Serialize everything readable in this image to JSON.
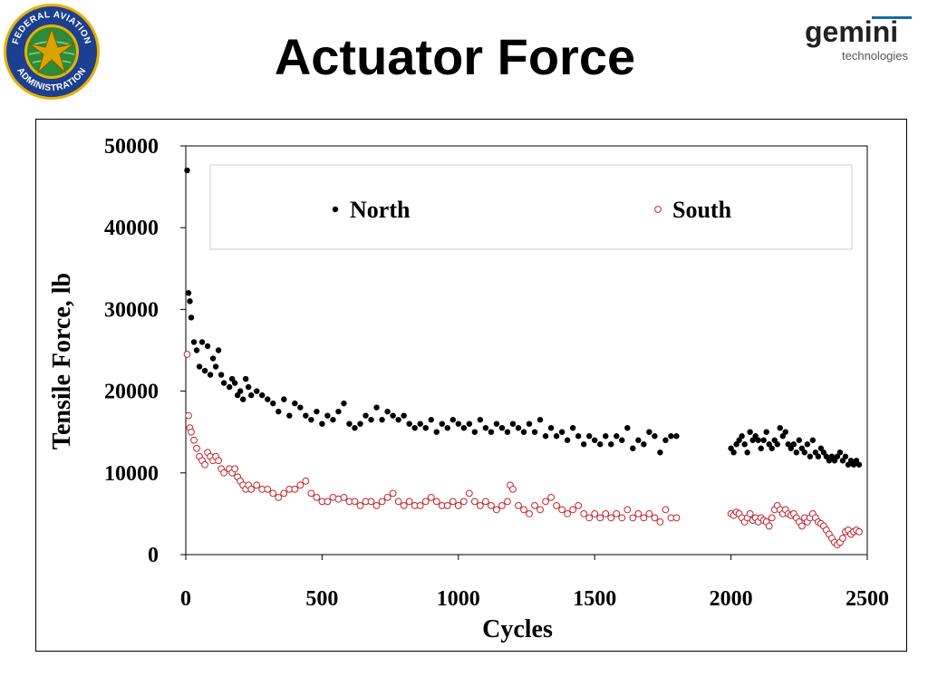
{
  "slide": {
    "title": "Actuator Force",
    "seal": {
      "top_text": "FEDERAL AVIATION",
      "bottom_text": "ADMINISTRATION"
    },
    "brand": {
      "name": "gemini",
      "subtitle": "technologies",
      "accent": "#1a6aa8"
    }
  },
  "chart_data": {
    "type": "scatter",
    "xlabel": "Cycles",
    "ylabel": "Tensile Force, lb",
    "xlim": [
      0,
      2500
    ],
    "ylim": [
      0,
      50000
    ],
    "xticks": [
      "0",
      "500",
      "1000",
      "1500",
      "2000",
      "2500"
    ],
    "yticks": [
      "0",
      "10000",
      "20000",
      "30000",
      "40000",
      "50000"
    ],
    "grid": false,
    "legend": {
      "placement": "top-inside",
      "boxed": true
    },
    "series": [
      {
        "name": "North",
        "color": "#000000",
        "marker": "filled-dot",
        "points": [
          [
            5,
            47000
          ],
          [
            10,
            32000
          ],
          [
            15,
            31000
          ],
          [
            20,
            29000
          ],
          [
            30,
            26000
          ],
          [
            40,
            25000
          ],
          [
            50,
            23000
          ],
          [
            60,
            26000
          ],
          [
            70,
            22500
          ],
          [
            80,
            25500
          ],
          [
            90,
            22000
          ],
          [
            100,
            24000
          ],
          [
            110,
            23000
          ],
          [
            120,
            25000
          ],
          [
            130,
            22000
          ],
          [
            140,
            21000
          ],
          [
            160,
            20500
          ],
          [
            170,
            21500
          ],
          [
            180,
            21000
          ],
          [
            190,
            19500
          ],
          [
            200,
            20000
          ],
          [
            210,
            19000
          ],
          [
            220,
            21500
          ],
          [
            230,
            20500
          ],
          [
            240,
            19500
          ],
          [
            260,
            20000
          ],
          [
            280,
            19500
          ],
          [
            300,
            19000
          ],
          [
            320,
            18500
          ],
          [
            340,
            17500
          ],
          [
            360,
            19000
          ],
          [
            380,
            17000
          ],
          [
            400,
            18500
          ],
          [
            420,
            18000
          ],
          [
            440,
            17000
          ],
          [
            460,
            16500
          ],
          [
            480,
            17500
          ],
          [
            500,
            16000
          ],
          [
            520,
            17000
          ],
          [
            540,
            16500
          ],
          [
            560,
            17500
          ],
          [
            580,
            18500
          ],
          [
            600,
            16000
          ],
          [
            620,
            15500
          ],
          [
            640,
            16000
          ],
          [
            660,
            17000
          ],
          [
            680,
            16500
          ],
          [
            700,
            18000
          ],
          [
            720,
            16500
          ],
          [
            740,
            17500
          ],
          [
            760,
            17000
          ],
          [
            780,
            16500
          ],
          [
            800,
            17000
          ],
          [
            820,
            16000
          ],
          [
            840,
            15500
          ],
          [
            860,
            16000
          ],
          [
            880,
            15500
          ],
          [
            900,
            16500
          ],
          [
            920,
            15000
          ],
          [
            940,
            16000
          ],
          [
            960,
            15500
          ],
          [
            980,
            16500
          ],
          [
            1000,
            16000
          ],
          [
            1020,
            15500
          ],
          [
            1040,
            16000
          ],
          [
            1060,
            15000
          ],
          [
            1080,
            16500
          ],
          [
            1100,
            15500
          ],
          [
            1120,
            15000
          ],
          [
            1140,
            16000
          ],
          [
            1160,
            15500
          ],
          [
            1180,
            15000
          ],
          [
            1200,
            16000
          ],
          [
            1220,
            15500
          ],
          [
            1240,
            15000
          ],
          [
            1260,
            16000
          ],
          [
            1280,
            15000
          ],
          [
            1300,
            16500
          ],
          [
            1320,
            14500
          ],
          [
            1340,
            15500
          ],
          [
            1360,
            14500
          ],
          [
            1380,
            15000
          ],
          [
            1400,
            14000
          ],
          [
            1420,
            15500
          ],
          [
            1440,
            14500
          ],
          [
            1460,
            13500
          ],
          [
            1480,
            14500
          ],
          [
            1500,
            14000
          ],
          [
            1520,
            13500
          ],
          [
            1540,
            14500
          ],
          [
            1560,
            13500
          ],
          [
            1580,
            14500
          ],
          [
            1600,
            14000
          ],
          [
            1620,
            15500
          ],
          [
            1640,
            13000
          ],
          [
            1660,
            14000
          ],
          [
            1680,
            13500
          ],
          [
            1700,
            15000
          ],
          [
            1720,
            14500
          ],
          [
            1740,
            12500
          ],
          [
            1760,
            14000
          ],
          [
            1780,
            14500
          ],
          [
            1800,
            14500
          ],
          [
            2000,
            13000
          ],
          [
            2010,
            12500
          ],
          [
            2020,
            13500
          ],
          [
            2030,
            14000
          ],
          [
            2040,
            14500
          ],
          [
            2050,
            13500
          ],
          [
            2060,
            12500
          ],
          [
            2070,
            15000
          ],
          [
            2080,
            14000
          ],
          [
            2090,
            14500
          ],
          [
            2100,
            14000
          ],
          [
            2110,
            13000
          ],
          [
            2120,
            14000
          ],
          [
            2130,
            15000
          ],
          [
            2140,
            13500
          ],
          [
            2150,
            13000
          ],
          [
            2160,
            14000
          ],
          [
            2170,
            13500
          ],
          [
            2180,
            15500
          ],
          [
            2190,
            14500
          ],
          [
            2200,
            15000
          ],
          [
            2210,
            13500
          ],
          [
            2220,
            13000
          ],
          [
            2230,
            13500
          ],
          [
            2240,
            12500
          ],
          [
            2250,
            14000
          ],
          [
            2260,
            13000
          ],
          [
            2270,
            12500
          ],
          [
            2280,
            13500
          ],
          [
            2290,
            12000
          ],
          [
            2300,
            14000
          ],
          [
            2310,
            12500
          ],
          [
            2320,
            12000
          ],
          [
            2330,
            13000
          ],
          [
            2340,
            12500
          ],
          [
            2350,
            12000
          ],
          [
            2360,
            11500
          ],
          [
            2370,
            12000
          ],
          [
            2380,
            11500
          ],
          [
            2390,
            12000
          ],
          [
            2400,
            12500
          ],
          [
            2410,
            11500
          ],
          [
            2420,
            12000
          ],
          [
            2430,
            11000
          ],
          [
            2440,
            11500
          ],
          [
            2450,
            11000
          ],
          [
            2460,
            11500
          ],
          [
            2470,
            11000
          ]
        ]
      },
      {
        "name": "South",
        "color": "#c1272d",
        "marker": "open-circle",
        "points": [
          [
            5,
            24500
          ],
          [
            10,
            17000
          ],
          [
            15,
            15500
          ],
          [
            20,
            15000
          ],
          [
            30,
            14000
          ],
          [
            40,
            13000
          ],
          [
            50,
            12000
          ],
          [
            60,
            11500
          ],
          [
            70,
            11000
          ],
          [
            80,
            12500
          ],
          [
            90,
            12000
          ],
          [
            100,
            11500
          ],
          [
            110,
            12000
          ],
          [
            120,
            11500
          ],
          [
            130,
            10500
          ],
          [
            140,
            10000
          ],
          [
            160,
            10500
          ],
          [
            170,
            10000
          ],
          [
            180,
            10500
          ],
          [
            190,
            9500
          ],
          [
            200,
            9000
          ],
          [
            210,
            8500
          ],
          [
            220,
            8000
          ],
          [
            230,
            8500
          ],
          [
            240,
            8000
          ],
          [
            260,
            8500
          ],
          [
            280,
            8000
          ],
          [
            300,
            8000
          ],
          [
            320,
            7500
          ],
          [
            340,
            7000
          ],
          [
            360,
            7500
          ],
          [
            380,
            8000
          ],
          [
            400,
            8000
          ],
          [
            420,
            8500
          ],
          [
            440,
            9000
          ],
          [
            460,
            7500
          ],
          [
            480,
            7000
          ],
          [
            500,
            6500
          ],
          [
            520,
            6500
          ],
          [
            540,
            7000
          ],
          [
            560,
            6800
          ],
          [
            580,
            7000
          ],
          [
            600,
            6500
          ],
          [
            620,
            6500
          ],
          [
            640,
            6000
          ],
          [
            660,
            6500
          ],
          [
            680,
            6500
          ],
          [
            700,
            6000
          ],
          [
            720,
            6500
          ],
          [
            740,
            7000
          ],
          [
            760,
            7500
          ],
          [
            780,
            6500
          ],
          [
            800,
            6000
          ],
          [
            820,
            6500
          ],
          [
            840,
            6000
          ],
          [
            860,
            6000
          ],
          [
            880,
            6500
          ],
          [
            900,
            7000
          ],
          [
            920,
            6500
          ],
          [
            940,
            6000
          ],
          [
            960,
            6000
          ],
          [
            980,
            6500
          ],
          [
            1000,
            6000
          ],
          [
            1020,
            6500
          ],
          [
            1040,
            7500
          ],
          [
            1060,
            6500
          ],
          [
            1080,
            6000
          ],
          [
            1100,
            6500
          ],
          [
            1120,
            6000
          ],
          [
            1140,
            5500
          ],
          [
            1160,
            6000
          ],
          [
            1180,
            6500
          ],
          [
            1190,
            8500
          ],
          [
            1200,
            8000
          ],
          [
            1220,
            6000
          ],
          [
            1240,
            5500
          ],
          [
            1260,
            5000
          ],
          [
            1280,
            6000
          ],
          [
            1300,
            5500
          ],
          [
            1320,
            6500
          ],
          [
            1340,
            7000
          ],
          [
            1360,
            6000
          ],
          [
            1380,
            5500
          ],
          [
            1400,
            5000
          ],
          [
            1420,
            5500
          ],
          [
            1440,
            6000
          ],
          [
            1460,
            5000
          ],
          [
            1480,
            4500
          ],
          [
            1500,
            5000
          ],
          [
            1520,
            4500
          ],
          [
            1540,
            5000
          ],
          [
            1560,
            4500
          ],
          [
            1580,
            5000
          ],
          [
            1600,
            4500
          ],
          [
            1620,
            5500
          ],
          [
            1640,
            4500
          ],
          [
            1660,
            5000
          ],
          [
            1680,
            4500
          ],
          [
            1700,
            5000
          ],
          [
            1720,
            4500
          ],
          [
            1740,
            4000
          ],
          [
            1760,
            5500
          ],
          [
            1780,
            4500
          ],
          [
            1800,
            4500
          ],
          [
            2000,
            5000
          ],
          [
            2010,
            4800
          ],
          [
            2020,
            5200
          ],
          [
            2030,
            5000
          ],
          [
            2040,
            4500
          ],
          [
            2050,
            4000
          ],
          [
            2060,
            4500
          ],
          [
            2070,
            5000
          ],
          [
            2080,
            4200
          ],
          [
            2090,
            4500
          ],
          [
            2100,
            4000
          ],
          [
            2110,
            4500
          ],
          [
            2120,
            4200
          ],
          [
            2130,
            4000
          ],
          [
            2140,
            3500
          ],
          [
            2150,
            4500
          ],
          [
            2160,
            5500
          ],
          [
            2170,
            6000
          ],
          [
            2180,
            5500
          ],
          [
            2190,
            5000
          ],
          [
            2200,
            5500
          ],
          [
            2210,
            5000
          ],
          [
            2220,
            4800
          ],
          [
            2230,
            5000
          ],
          [
            2240,
            4500
          ],
          [
            2250,
            4000
          ],
          [
            2260,
            3500
          ],
          [
            2270,
            4500
          ],
          [
            2280,
            4000
          ],
          [
            2290,
            4500
          ],
          [
            2300,
            5000
          ],
          [
            2310,
            4500
          ],
          [
            2320,
            4000
          ],
          [
            2330,
            3800
          ],
          [
            2340,
            3500
          ],
          [
            2350,
            3000
          ],
          [
            2360,
            2500
          ],
          [
            2370,
            2000
          ],
          [
            2380,
            1500
          ],
          [
            2390,
            1200
          ],
          [
            2400,
            1500
          ],
          [
            2410,
            2000
          ],
          [
            2420,
            2800
          ],
          [
            2430,
            3000
          ],
          [
            2440,
            2500
          ],
          [
            2450,
            2800
          ],
          [
            2460,
            3000
          ],
          [
            2470,
            2800
          ]
        ]
      }
    ]
  }
}
